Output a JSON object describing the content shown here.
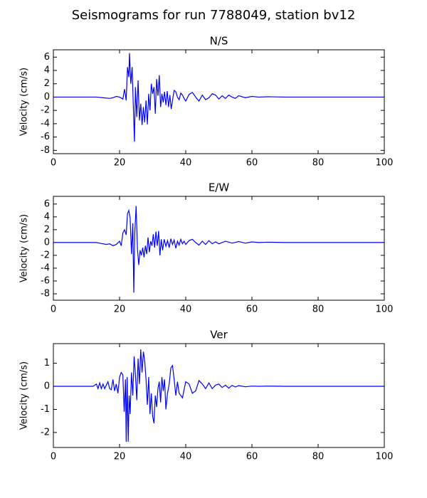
{
  "title": "Seismograms for run 7788049, station bv12",
  "chart_data": [
    {
      "type": "line",
      "title": "N/S",
      "ylabel": "Velocity (cm/s)",
      "color": "#0000ff",
      "xlim": [
        0,
        100
      ],
      "xticks": [
        0,
        20,
        40,
        60,
        80,
        100
      ],
      "ylim": [
        -8.5,
        7.1
      ],
      "yticks": [
        -8,
        -6,
        -4,
        -2,
        0,
        2,
        4,
        6
      ],
      "x": [
        0,
        13,
        15,
        17,
        18,
        19,
        20,
        21,
        21.5,
        22,
        22.4,
        22.8,
        23,
        23.4,
        23.8,
        24.2,
        24.5,
        24.8,
        25.2,
        25.6,
        26,
        26.4,
        26.8,
        27.2,
        27.6,
        28,
        28.4,
        28.8,
        29.2,
        29.6,
        30,
        30.4,
        30.8,
        31.2,
        31.6,
        32,
        32.4,
        32.8,
        33.2,
        33.6,
        34,
        34.4,
        34.8,
        35.2,
        35.6,
        36,
        36.5,
        37,
        37.5,
        38,
        38.5,
        39,
        39.5,
        40,
        41,
        42,
        43,
        44,
        45,
        46,
        47,
        48,
        49,
        50,
        51,
        52,
        53,
        54,
        55,
        56,
        58,
        60,
        62,
        65,
        70,
        100
      ],
      "values": [
        0,
        0,
        -0.1,
        -0.2,
        -0.1,
        0.1,
        0,
        -0.3,
        1.2,
        -0.5,
        4.5,
        3,
        6.6,
        2,
        4.5,
        -2,
        -6.7,
        1.5,
        -3,
        2.5,
        -3.5,
        -1,
        -4.2,
        -1.5,
        -3.8,
        -0.5,
        -4.1,
        0.5,
        -2,
        2,
        0.5,
        1.5,
        -2.5,
        2.7,
        0.2,
        3.3,
        -1.5,
        0.5,
        -0.8,
        0.8,
        -1.2,
        0.9,
        -1.5,
        0.3,
        -1.8,
        -0.5,
        1,
        0.8,
        0,
        -0.4,
        0.6,
        0.3,
        -0.2,
        -0.6,
        0.4,
        0.7,
        0,
        -0.6,
        0.3,
        -0.4,
        -0.1,
        0.5,
        0.3,
        -0.3,
        0.2,
        -0.2,
        0.3,
        0,
        -0.2,
        0.2,
        -0.1,
        0.1,
        0,
        0.05,
        0,
        0
      ]
    },
    {
      "type": "line",
      "title": "E/W",
      "ylabel": "Velocity (cm/s)",
      "color": "#0000ff",
      "xlim": [
        0,
        100
      ],
      "xticks": [
        0,
        20,
        40,
        60,
        80,
        100
      ],
      "ylim": [
        -9.0,
        7.2
      ],
      "yticks": [
        -8,
        -6,
        -4,
        -2,
        0,
        2,
        4,
        6
      ],
      "x": [
        0,
        13,
        14,
        15,
        16,
        17,
        18,
        19,
        20,
        20.5,
        21,
        21.5,
        22,
        22.4,
        22.8,
        23.2,
        23.6,
        24,
        24.3,
        24.6,
        25,
        25.4,
        25.8,
        26.2,
        26.6,
        27,
        27.4,
        27.8,
        28.2,
        28.6,
        29,
        29.4,
        29.8,
        30.2,
        30.6,
        31,
        31.4,
        31.8,
        32.2,
        32.6,
        33,
        33.5,
        34,
        34.5,
        35,
        35.5,
        36,
        36.5,
        37,
        37.5,
        38,
        38.5,
        39,
        39.5,
        40,
        41,
        42,
        43,
        44,
        45,
        46,
        47,
        48,
        49,
        50,
        52,
        54,
        56,
        58,
        60,
        62,
        65,
        70,
        100
      ],
      "values": [
        0,
        0,
        -0.1,
        -0.2,
        -0.3,
        -0.2,
        -0.5,
        -0.3,
        0.2,
        -0.5,
        1.5,
        2,
        1.2,
        4.5,
        5,
        3.8,
        -1.8,
        3,
        -7.8,
        1.5,
        5.7,
        -1,
        -3.5,
        -1.2,
        -2,
        -0.8,
        -2.3,
        -0.5,
        -1.8,
        0.8,
        -1.5,
        0.2,
        -0.5,
        1.3,
        -0.8,
        1.7,
        -0.5,
        1.8,
        -2,
        0.5,
        -1.2,
        0.5,
        -0.6,
        0.3,
        -0.8,
        0.6,
        -0.3,
        0.4,
        -0.9,
        0.2,
        -0.4,
        0.5,
        -0.2,
        0.2,
        -0.3,
        0.3,
        0.5,
        0,
        -0.4,
        0.2,
        -0.3,
        0.3,
        -0.2,
        0.1,
        -0.2,
        0.2,
        -0.1,
        0.15,
        -0.1,
        0.1,
        0,
        0.05,
        0,
        0
      ]
    },
    {
      "type": "line",
      "title": "Ver",
      "ylabel": "Velocity (cm/s)",
      "color": "#0000ff",
      "xlim": [
        0,
        100
      ],
      "xticks": [
        0,
        20,
        40,
        60,
        80,
        100
      ],
      "ylim": [
        -2.65,
        1.85
      ],
      "yticks": [
        -2,
        -1,
        0,
        1
      ],
      "x": [
        0,
        12,
        13,
        13.5,
        14,
        14.5,
        15,
        15.5,
        16,
        16.5,
        17,
        17.5,
        18,
        18.5,
        19,
        19.5,
        20,
        20.5,
        21,
        21.4,
        21.8,
        22,
        22.3,
        22.6,
        22.9,
        23.2,
        23.6,
        24,
        24.4,
        24.8,
        25.2,
        25.6,
        26,
        26.4,
        26.8,
        27.2,
        27.6,
        28,
        28.4,
        28.8,
        29.2,
        29.6,
        30,
        30.4,
        30.8,
        31.2,
        31.6,
        32,
        32.4,
        32.8,
        33.2,
        33.6,
        34,
        34.5,
        35,
        35.5,
        36,
        36.5,
        37,
        37.5,
        38,
        39,
        40,
        41,
        42,
        43,
        44,
        45,
        46,
        47,
        48,
        49,
        50,
        51,
        52,
        53,
        54,
        55,
        56,
        58,
        60,
        62,
        65,
        70,
        100
      ],
      "values": [
        0,
        0,
        0.1,
        -0.1,
        0.15,
        -0.1,
        0.1,
        -0.1,
        0.05,
        0.2,
        -0.1,
        -0.15,
        0.3,
        -0.2,
        0.1,
        -0.3,
        0.4,
        0.6,
        0.5,
        -1.1,
        0.3,
        -2.4,
        0.4,
        -2.4,
        -0.4,
        -1.2,
        0.6,
        -0.4,
        1.3,
        0.5,
        -0.6,
        1.2,
        0.1,
        1.6,
        0.6,
        1.5,
        1.1,
        0.3,
        -0.8,
        0.4,
        -1.2,
        -0.3,
        -1.3,
        -1.6,
        -0.4,
        -0.9,
        -0.1,
        0.2,
        -0.7,
        0.4,
        -0.2,
        0.3,
        -1.0,
        -0.3,
        0.1,
        0.8,
        0.9,
        0.3,
        -0.4,
        0.2,
        -0.3,
        -0.5,
        0.2,
        0.1,
        -0.3,
        -0.2,
        0.25,
        0.1,
        -0.1,
        0.15,
        -0.1,
        0.05,
        0.1,
        -0.05,
        0.05,
        -0.08,
        0.04,
        -0.03,
        0.03,
        -0.02,
        0.01,
        0,
        0.01,
        0,
        0
      ]
    }
  ]
}
